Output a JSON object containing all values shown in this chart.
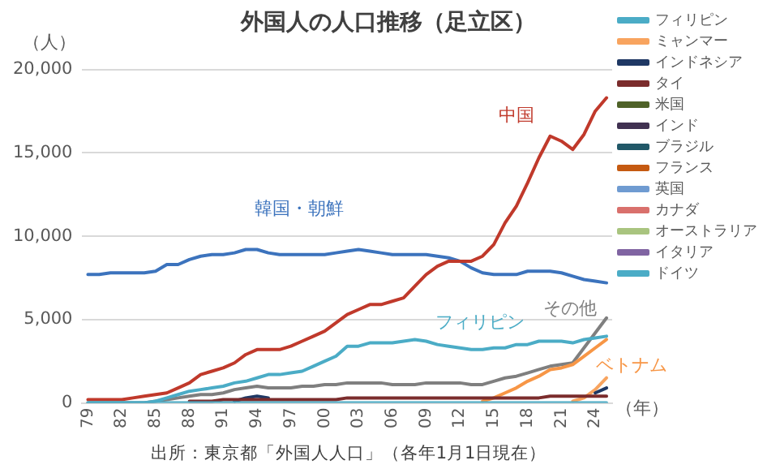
{
  "chart_data": {
    "type": "line",
    "title": "外国人の人口推移（足立区）",
    "ylabel": "（人）",
    "xlabel": "（年）",
    "x": [
      1979,
      1980,
      1981,
      1982,
      1983,
      1984,
      1985,
      1986,
      1987,
      1988,
      1989,
      1990,
      1991,
      1992,
      1993,
      1994,
      1995,
      1996,
      1997,
      1998,
      1999,
      2000,
      2001,
      2002,
      2003,
      2004,
      2005,
      2006,
      2007,
      2008,
      2009,
      2010,
      2011,
      2012,
      2013,
      2014,
      2015,
      2016,
      2017,
      2018,
      2019,
      2020,
      2021,
      2022,
      2023,
      2024,
      2025
    ],
    "xlim": [
      1978.5,
      2025.5
    ],
    "xticks": [
      {
        "value": 1979,
        "label": "79"
      },
      {
        "value": 1982,
        "label": "82"
      },
      {
        "value": 1985,
        "label": "85"
      },
      {
        "value": 1988,
        "label": "88"
      },
      {
        "value": 1991,
        "label": "91"
      },
      {
        "value": 1994,
        "label": "94"
      },
      {
        "value": 1997,
        "label": "97"
      },
      {
        "value": 2000,
        "label": "00"
      },
      {
        "value": 2003,
        "label": "03"
      },
      {
        "value": 2006,
        "label": "06"
      },
      {
        "value": 2009,
        "label": "09"
      },
      {
        "value": 2012,
        "label": "12"
      },
      {
        "value": 2015,
        "label": "15"
      },
      {
        "value": 2018,
        "label": "18"
      },
      {
        "value": 2021,
        "label": "21"
      },
      {
        "value": 2024,
        "label": "24"
      }
    ],
    "ylim": [
      0,
      20000
    ],
    "yticks": [
      0,
      {
        "value": 5000,
        "label": "5,000"
      },
      {
        "value": 10000,
        "label": "10,000"
      },
      {
        "value": 15000,
        "label": "15,000"
      },
      {
        "value": 20000,
        "label": "20,000"
      }
    ],
    "grid": "y",
    "legend": "right",
    "marker": "none",
    "line_style": "solid",
    "series": [
      {
        "color": "#3c73bd",
        "values": [
          7700,
          7700,
          7800,
          7800,
          7800,
          7800,
          7900,
          8300,
          8300,
          8600,
          8800,
          8900,
          8900,
          9000,
          9200,
          9200,
          9000,
          8900,
          8900,
          8900,
          8900,
          8900,
          9000,
          9100,
          9200,
          9100,
          9000,
          8900,
          8900,
          8900,
          8900,
          8800,
          8700,
          8500,
          8100,
          7800,
          7700,
          7700,
          7700,
          7900,
          7900,
          7900,
          7800,
          7600,
          7400,
          7300,
          7200
        ]
      },
      {
        "color": "#c0392b",
        "values": [
          200,
          200,
          200,
          200,
          300,
          400,
          500,
          600,
          900,
          1200,
          1700,
          1900,
          2100,
          2400,
          2900,
          3200,
          3200,
          3200,
          3400,
          3700,
          4000,
          4300,
          4800,
          5300,
          5600,
          5900,
          5900,
          6100,
          6300,
          7000,
          7700,
          8200,
          8500,
          8500,
          8500,
          8800,
          9500,
          10800,
          11800,
          13200,
          14700,
          16000,
          15700,
          15200,
          16100,
          17500,
          18300
        ]
      },
      {
        "color": "#7f7f7f",
        "values": [
          0,
          0,
          0,
          0,
          0,
          0,
          100,
          200,
          300,
          400,
          500,
          500,
          600,
          800,
          900,
          1000,
          900,
          900,
          900,
          1000,
          1000,
          1100,
          1100,
          1200,
          1200,
          1200,
          1200,
          1100,
          1100,
          1100,
          1200,
          1200,
          1200,
          1200,
          1100,
          1100,
          1300,
          1500,
          1600,
          1800,
          2000,
          2200,
          2300,
          2400,
          3300,
          4200,
          5100
        ]
      },
      {
        "color": "#f79646",
        "values": [
          null,
          null,
          null,
          null,
          null,
          null,
          null,
          null,
          null,
          null,
          null,
          null,
          null,
          null,
          null,
          null,
          null,
          null,
          null,
          null,
          null,
          null,
          null,
          null,
          null,
          null,
          null,
          null,
          null,
          null,
          null,
          null,
          null,
          null,
          null,
          100,
          300,
          600,
          900,
          1300,
          1600,
          2000,
          2100,
          2300,
          2800,
          3300,
          3800
        ]
      },
      {
        "name": "フィリピン",
        "color": "#4bacc6",
        "values": [
          0,
          0,
          0,
          0,
          0,
          0,
          100,
          300,
          500,
          700,
          800,
          900,
          1000,
          1200,
          1300,
          1500,
          1700,
          1700,
          1800,
          1900,
          2200,
          2500,
          2800,
          3400,
          3400,
          3600,
          3600,
          3600,
          3700,
          3800,
          3700,
          3500,
          3400,
          3300,
          3200,
          3200,
          3300,
          3300,
          3500,
          3500,
          3700,
          3700,
          3700,
          3600,
          3800,
          3900,
          4000
        ]
      },
      {
        "name": "ミャンマー",
        "color": "#f8a45f",
        "values": [
          null,
          null,
          null,
          null,
          null,
          null,
          null,
          null,
          null,
          null,
          null,
          null,
          null,
          null,
          null,
          null,
          null,
          null,
          null,
          null,
          null,
          null,
          null,
          null,
          null,
          null,
          null,
          null,
          null,
          null,
          null,
          null,
          null,
          null,
          null,
          null,
          null,
          null,
          null,
          null,
          null,
          null,
          null,
          100,
          300,
          800,
          1500
        ]
      },
      {
        "name": "インドネシア",
        "color": "#1f3864",
        "values": [
          null,
          null,
          null,
          null,
          null,
          null,
          null,
          null,
          null,
          null,
          null,
          null,
          null,
          100,
          300,
          400,
          300,
          null,
          null,
          null,
          null,
          null,
          null,
          null,
          null,
          null,
          null,
          null,
          null,
          null,
          null,
          null,
          null,
          null,
          null,
          null,
          null,
          null,
          null,
          null,
          null,
          null,
          null,
          null,
          null,
          600,
          900
        ]
      },
      {
        "name": "タイ",
        "color": "#7b2c2c",
        "values": [
          null,
          null,
          null,
          null,
          null,
          null,
          null,
          null,
          null,
          100,
          100,
          100,
          200,
          200,
          200,
          200,
          200,
          200,
          200,
          200,
          200,
          200,
          200,
          300,
          300,
          300,
          300,
          300,
          300,
          300,
          300,
          300,
          300,
          300,
          300,
          300,
          300,
          300,
          300,
          300,
          300,
          400,
          400,
          400,
          400,
          400,
          400
        ]
      },
      {
        "name": "米国",
        "color": "#4f6228",
        "values": [
          null,
          null,
          null,
          null,
          null,
          null,
          null,
          null,
          null,
          null,
          null,
          null,
          null,
          null,
          null,
          null,
          null,
          null,
          null,
          null,
          null,
          null,
          null,
          null,
          null,
          null,
          null,
          null,
          null,
          null,
          null,
          null,
          null,
          null,
          null,
          null,
          null,
          null,
          null,
          null,
          null,
          null,
          null,
          null,
          null,
          null,
          null
        ]
      },
      {
        "name": "インド",
        "color": "#403151",
        "values": [
          null,
          null,
          null,
          null,
          null,
          null,
          null,
          null,
          null,
          null,
          null,
          null,
          null,
          null,
          null,
          null,
          null,
          null,
          null,
          null,
          null,
          null,
          null,
          null,
          null,
          null,
          null,
          null,
          null,
          null,
          null,
          null,
          null,
          null,
          null,
          null,
          null,
          null,
          null,
          null,
          null,
          null,
          null,
          null,
          null,
          null,
          null
        ]
      },
      {
        "name": "ブラジル",
        "color": "#215868",
        "values": [
          null,
          null,
          null,
          null,
          null,
          null,
          null,
          null,
          null,
          null,
          null,
          null,
          null,
          null,
          null,
          null,
          null,
          null,
          null,
          null,
          null,
          null,
          null,
          null,
          null,
          null,
          null,
          null,
          null,
          null,
          null,
          null,
          null,
          null,
          null,
          null,
          null,
          null,
          null,
          null,
          null,
          null,
          null,
          null,
          null,
          null,
          null
        ]
      },
      {
        "name": "フランス",
        "color": "#c55a11",
        "values": [
          null,
          null,
          null,
          null,
          null,
          null,
          null,
          null,
          null,
          null,
          null,
          null,
          null,
          null,
          null,
          null,
          null,
          null,
          null,
          null,
          null,
          null,
          null,
          null,
          null,
          null,
          null,
          null,
          null,
          null,
          null,
          null,
          null,
          null,
          null,
          null,
          null,
          null,
          null,
          null,
          null,
          null,
          null,
          null,
          null,
          null,
          null
        ]
      },
      {
        "name": "英国",
        "color": "#6f9bd1",
        "values": [
          null,
          null,
          null,
          null,
          null,
          null,
          null,
          null,
          null,
          null,
          null,
          null,
          null,
          null,
          null,
          null,
          null,
          null,
          null,
          null,
          null,
          null,
          null,
          null,
          null,
          null,
          null,
          null,
          null,
          null,
          null,
          null,
          null,
          null,
          null,
          null,
          null,
          null,
          null,
          null,
          null,
          null,
          null,
          null,
          null,
          null,
          null
        ]
      },
      {
        "name": "カナダ",
        "color": "#d9706c",
        "values": [
          null,
          null,
          null,
          null,
          null,
          null,
          null,
          null,
          null,
          null,
          null,
          null,
          null,
          null,
          null,
          null,
          null,
          null,
          null,
          null,
          null,
          null,
          null,
          null,
          null,
          null,
          null,
          null,
          null,
          null,
          null,
          null,
          null,
          null,
          null,
          null,
          null,
          null,
          null,
          null,
          null,
          null,
          null,
          null,
          null,
          null,
          null
        ]
      },
      {
        "name": "オーストラリア",
        "color": "#a9c47f",
        "values": [
          null,
          null,
          null,
          null,
          null,
          null,
          null,
          null,
          null,
          null,
          null,
          null,
          null,
          null,
          null,
          null,
          null,
          null,
          null,
          null,
          null,
          null,
          null,
          null,
          null,
          null,
          null,
          null,
          null,
          null,
          null,
          null,
          null,
          null,
          null,
          null,
          null,
          null,
          null,
          null,
          null,
          null,
          null,
          null,
          null,
          null,
          null
        ]
      },
      {
        "name": "イタリア",
        "color": "#8064a2",
        "values": [
          null,
          null,
          null,
          null,
          null,
          null,
          null,
          null,
          null,
          null,
          null,
          null,
          null,
          null,
          null,
          null,
          null,
          null,
          null,
          null,
          null,
          null,
          null,
          null,
          null,
          null,
          null,
          null,
          null,
          null,
          null,
          null,
          null,
          null,
          null,
          null,
          null,
          null,
          null,
          null,
          null,
          null,
          null,
          null,
          null,
          null,
          null
        ]
      },
      {
        "name": "ドイツ",
        "color": "#4bacc6",
        "values": [
          0,
          0,
          0,
          0,
          0,
          0,
          0,
          0,
          0,
          0,
          0,
          0,
          0,
          0,
          0,
          0,
          0,
          0,
          0,
          0,
          0,
          0,
          0,
          0,
          0,
          0,
          0,
          0,
          0,
          0,
          0,
          0,
          0,
          0,
          0,
          0,
          0,
          0,
          0,
          0,
          0,
          0,
          0,
          0,
          0,
          0,
          0
        ]
      }
    ],
    "annotations": [
      "韓国・朝鮮",
      "中国",
      "その他",
      "ベトナム",
      "フィリピン",
      "出所：東京都「外国人人口」（各年1月1日現在）"
    ]
  }
}
